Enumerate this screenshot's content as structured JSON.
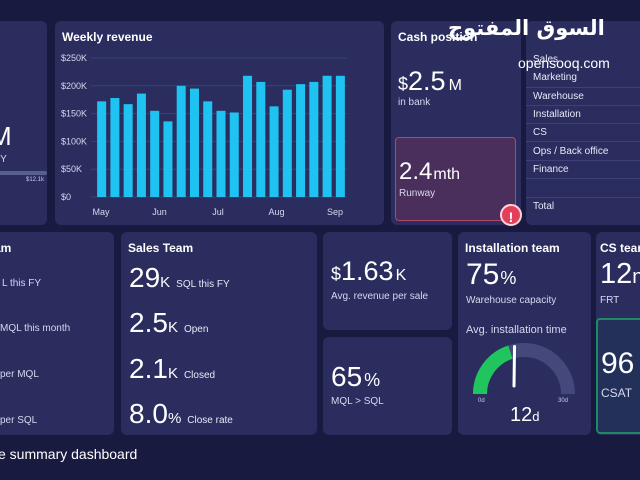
{
  "top_left": {
    "big_letter": "M",
    "fy_label": "FY",
    "bar_label": "$12.1k"
  },
  "revenue": {
    "title": "Weekly revenue"
  },
  "chart_data": {
    "type": "bar",
    "title": "Weekly revenue",
    "y_ticks": [
      "$250K",
      "$200K",
      "$150K",
      "$100K",
      "$50K",
      "$0"
    ],
    "ylim": [
      0,
      250000
    ],
    "x_ticks": [
      "May",
      "Jun",
      "Jul",
      "Aug",
      "Sep"
    ],
    "values": [
      172000,
      178000,
      167000,
      186000,
      155000,
      136000,
      200000,
      195000,
      172000,
      155000,
      152000,
      218000,
      207000,
      163000,
      193000,
      203000,
      207000,
      218000,
      218000
    ],
    "color": "#1ec3f2",
    "grid": true
  },
  "cash": {
    "title": "Cash position",
    "amount_prefix": "$",
    "amount": "2.5",
    "amount_unit": "M",
    "amount_label": "in bank",
    "runway_value": "2.4",
    "runway_unit": "mth",
    "runway_label": "Runway",
    "alert_glyph": "!"
  },
  "departments": {
    "items": [
      "Sales",
      "Marketing",
      "Warehouse",
      "Installation",
      "CS",
      "Ops / Back office",
      "Finance",
      "Total"
    ]
  },
  "left_team": {
    "title": "am",
    "rows": [
      "L this FY",
      "MQL this month",
      "per MQL",
      "per SQL"
    ]
  },
  "sales": {
    "title": "Sales Team",
    "rows": [
      {
        "value": "29",
        "unit": "K",
        "label": "SQL this FY"
      },
      {
        "value": "2.5",
        "unit": "K",
        "label": "Open"
      },
      {
        "value": "2.1",
        "unit": "K",
        "label": "Closed"
      },
      {
        "value": "8.0",
        "unit": "%",
        "label": "Close rate"
      }
    ]
  },
  "avg_revenue": {
    "prefix": "$",
    "value": "1.63",
    "unit": "K",
    "label": "Avg. revenue per sale"
  },
  "mql_sql": {
    "value": "65",
    "unit": "%",
    "label": "MQL > SQL"
  },
  "installation": {
    "title": "Installation team",
    "capacity_value": "75",
    "capacity_unit": "%",
    "capacity_label": "Warehouse capacity",
    "gauge_title": "Avg. installation time",
    "gauge_min": "0d",
    "gauge_max": "30d",
    "gauge_value": "12",
    "gauge_unit": "d",
    "gauge_fraction": 0.4
  },
  "cs": {
    "title": "CS tean",
    "frt_value": "12",
    "frt_unit": "n",
    "frt_label": "FRT",
    "csat_value": "96",
    "csat_label": "CSAT"
  },
  "footer": {
    "caption": "e summary dashboard"
  },
  "logo": {
    "arabic": "السوق المفتوح",
    "latin": "opensooq.com"
  },
  "colors": {
    "background": "#181a40",
    "card": "#2a2d5e",
    "bar": "#1ec3f2",
    "gauge_fill": "#21c55d",
    "gauge_track": "#44487a",
    "alert": "#e2405a",
    "csat_border": "#1e8a64"
  }
}
